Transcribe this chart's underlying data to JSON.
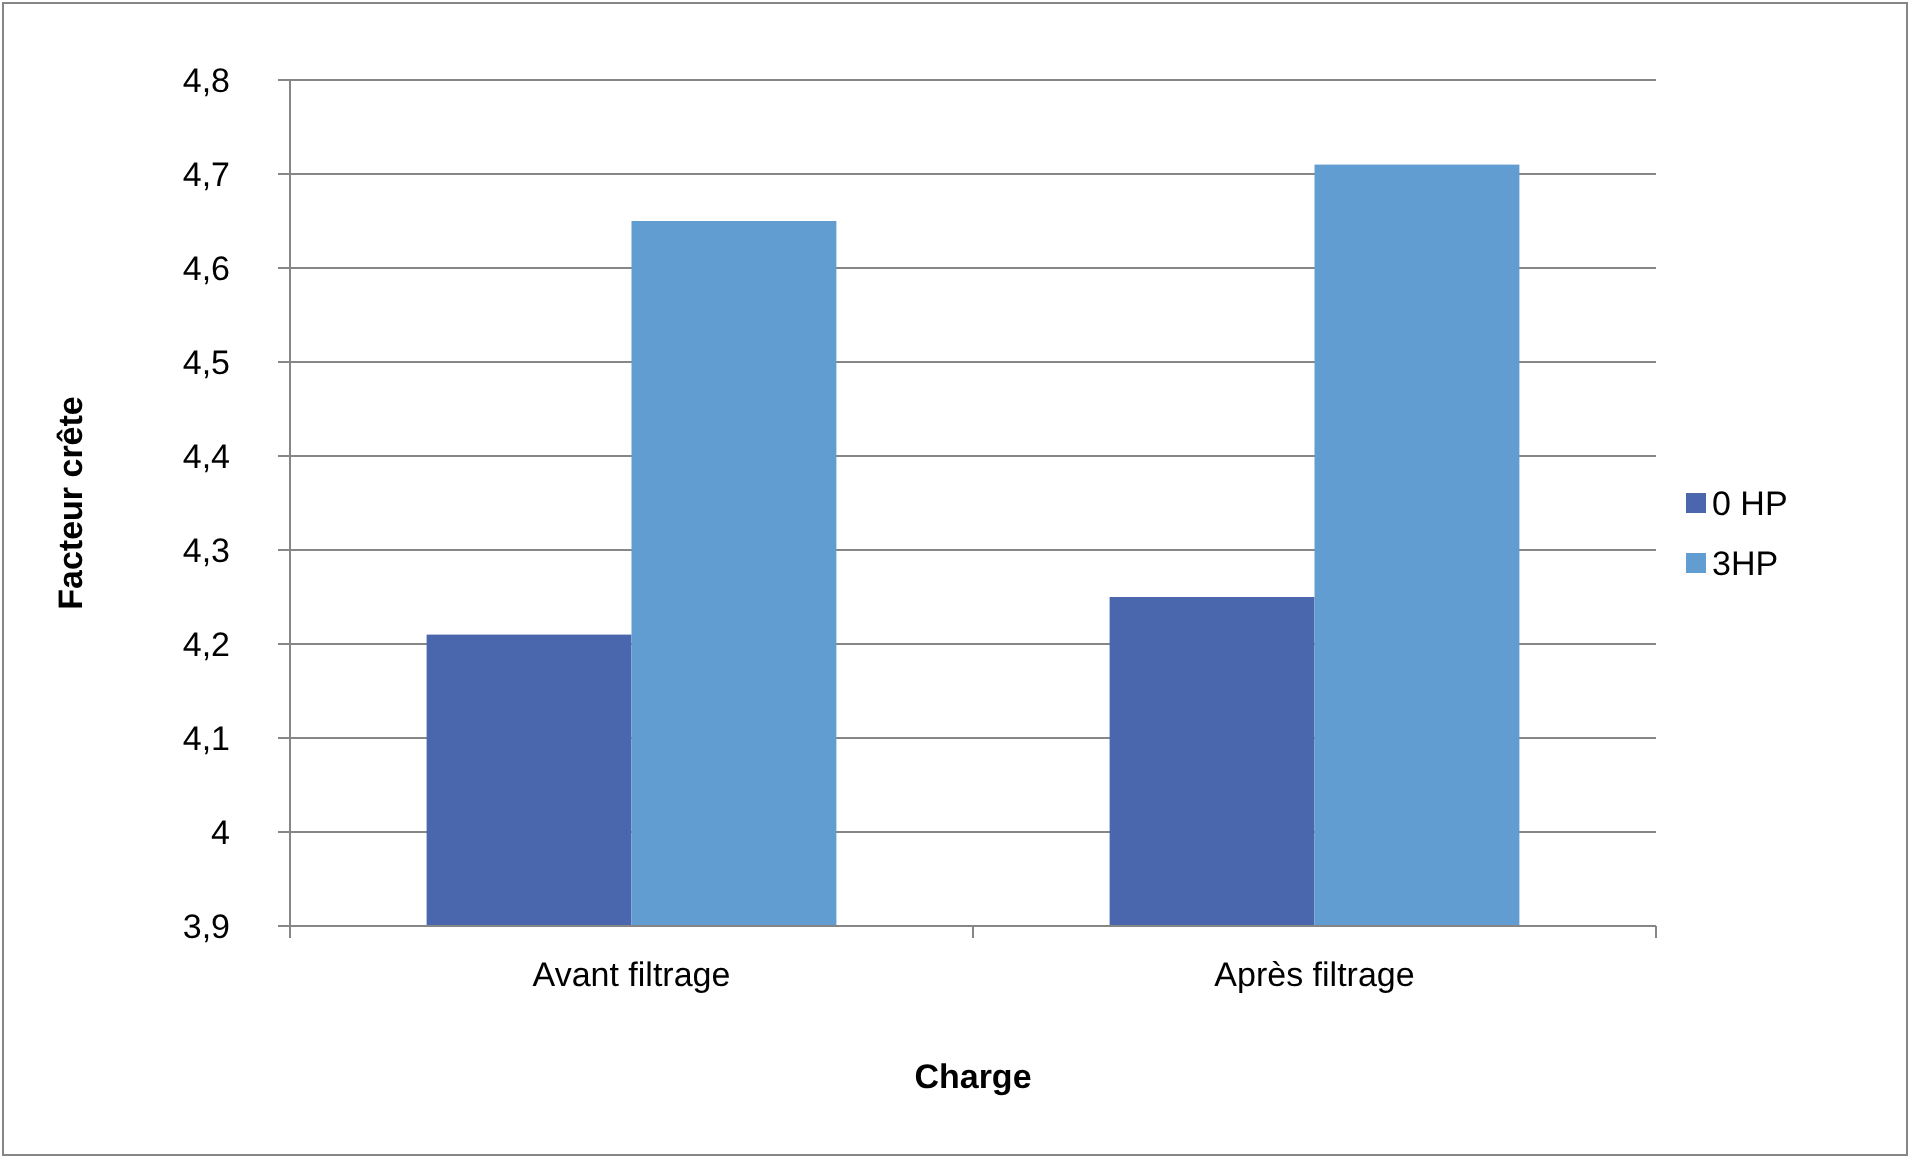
{
  "chart_data": {
    "type": "bar",
    "xlabel": "Charge",
    "ylabel": "Facteur crête",
    "categories": [
      "Avant filtrage",
      "Après filtrage"
    ],
    "series": [
      {
        "name": "0 HP",
        "color": "#4a66ac",
        "values": [
          4.21,
          4.25
        ]
      },
      {
        "name": "3HP",
        "color": "#629dd1",
        "values": [
          4.65,
          4.71
        ]
      }
    ],
    "ylim": [
      3.9,
      4.8
    ],
    "yticks": [
      {
        "value": 3.9,
        "label": "3,9"
      },
      4,
      {
        "value": 4.1,
        "label": "4,1"
      },
      {
        "value": 4.2,
        "label": "4,2"
      },
      {
        "value": 4.3,
        "label": "4,3"
      },
      {
        "value": 4.4,
        "label": "4,4"
      },
      {
        "value": 4.5,
        "label": "4,5"
      },
      {
        "value": 4.6,
        "label": "4,6"
      },
      {
        "value": 4.7,
        "label": "4,7"
      },
      {
        "value": 4.8,
        "label": "4,8"
      }
    ],
    "grid": "y",
    "legend": "right"
  }
}
